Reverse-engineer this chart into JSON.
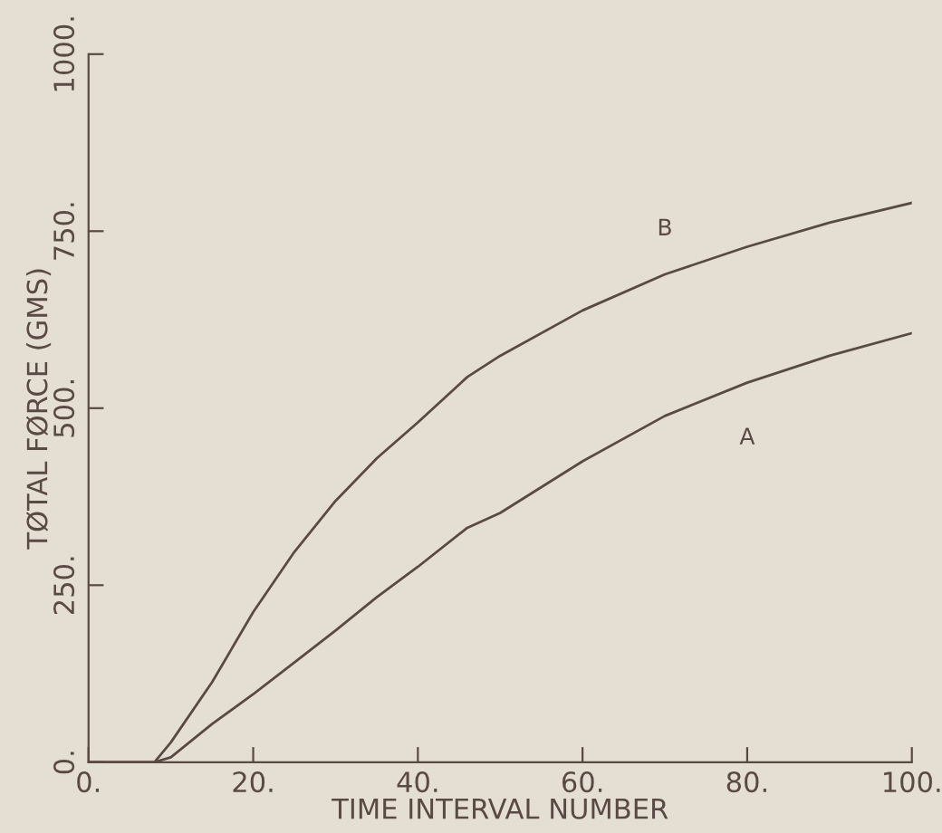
{
  "chart_data": {
    "type": "line",
    "xlabel": "TIME INTERVAL NUMBER",
    "ylabel": "TØTAL FØRCE (GMS)",
    "xlim": [
      0,
      100
    ],
    "ylim": [
      0,
      1000
    ],
    "xticks": [
      {
        "value": 0,
        "label": "0."
      },
      {
        "value": 20,
        "label": "20."
      },
      {
        "value": 40,
        "label": "40."
      },
      {
        "value": 60,
        "label": "60."
      },
      {
        "value": 80,
        "label": "80."
      },
      {
        "value": 100,
        "label": "100."
      }
    ],
    "yticks": [
      {
        "value": 0,
        "label": "0."
      },
      {
        "value": 250,
        "label": "250."
      },
      {
        "value": 500,
        "label": "500."
      },
      {
        "value": 750,
        "label": "750."
      },
      {
        "value": 1000,
        "label": "1000."
      }
    ],
    "grid": false,
    "legend": false,
    "marker": "none",
    "line_style": "solid",
    "series": [
      {
        "name": "B",
        "color": "#5a4a44",
        "x": [
          0,
          5,
          8,
          10,
          15,
          20,
          25,
          30,
          35,
          40,
          46,
          50,
          60,
          70,
          80,
          90,
          100
        ],
        "values": [
          0,
          0,
          0,
          28,
          113,
          212,
          297,
          369,
          429,
          480,
          544,
          574,
          638,
          689,
          728,
          762,
          790
        ]
      },
      {
        "name": "A",
        "color": "#5a4a44",
        "x": [
          0,
          5,
          8,
          10,
          15,
          20,
          25,
          30,
          35,
          40,
          46,
          50,
          60,
          70,
          80,
          90,
          100
        ],
        "values": [
          0,
          0,
          0,
          7,
          54,
          96,
          141,
          186,
          233,
          276,
          331,
          352,
          425,
          489,
          536,
          574,
          606
        ]
      }
    ]
  }
}
